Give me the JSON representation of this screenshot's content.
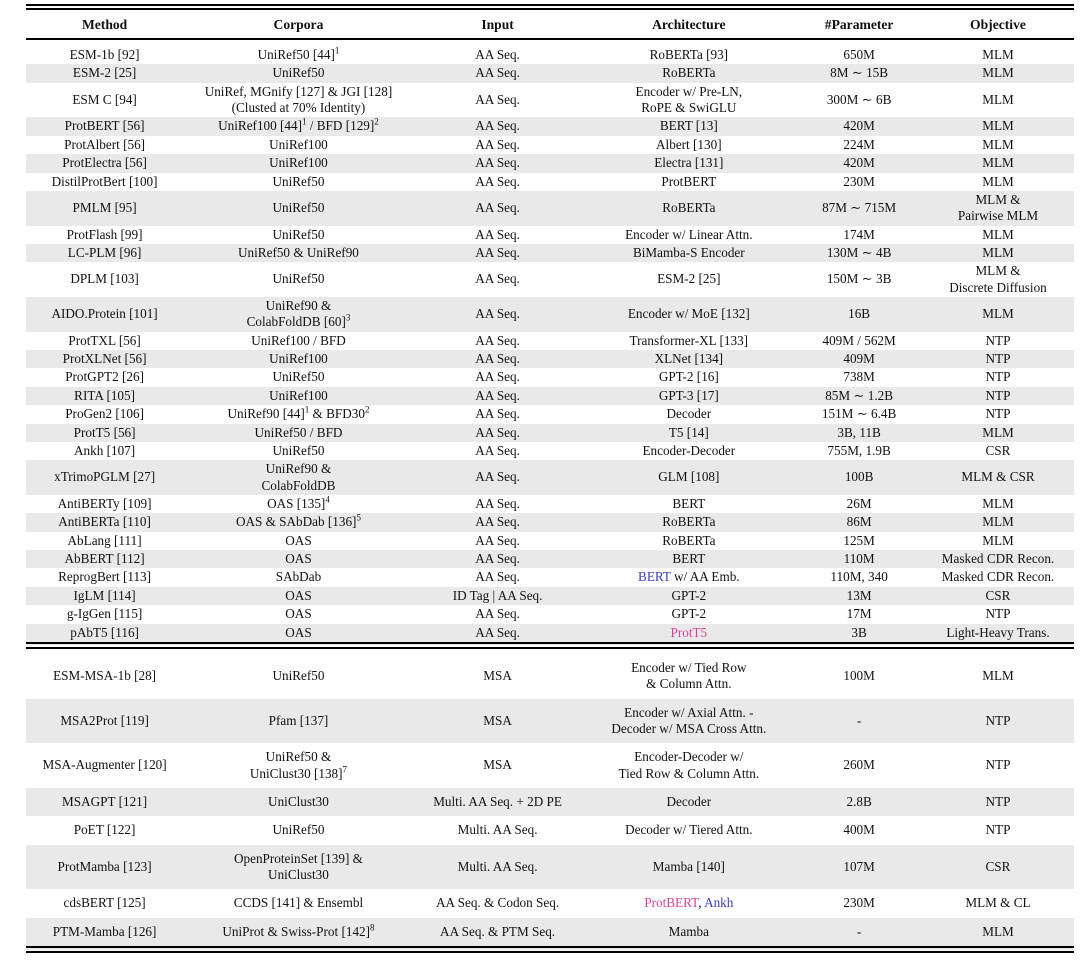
{
  "table": {
    "colors": {
      "pink": "#d6459c",
      "blue": "#3c3eb5",
      "stripe": "#e9e9e9"
    },
    "columns": [
      "Method",
      "Corpora",
      "Input",
      "Architecture",
      "#Parameter",
      "Objective"
    ],
    "sections": [
      {
        "rows": [
          [
            "ESM-1b [92]",
            [
              {
                "t": "UniRef50 [44]"
              },
              {
                "t": "1",
                "sup": true
              }
            ],
            "AA Seq.",
            "RoBERTa [93]",
            "650M",
            "MLM"
          ],
          [
            "ESM-2 [25]",
            "UniRef50",
            "AA Seq.",
            "RoBERTa",
            "8M ∼ 15B",
            "MLM"
          ],
          [
            "ESM C [94]",
            "UniRef, MGnify [127] & JGI [128]\n(Clusted at 70% Identity)",
            "AA Seq.",
            "Encoder w/ Pre-LN,\nRoPE & SwiGLU",
            "300M ∼ 6B",
            "MLM"
          ],
          [
            "ProtBERT [56]",
            [
              {
                "t": "UniRef100 [44]"
              },
              {
                "t": "1",
                "sup": true
              },
              {
                "t": " / BFD [129]"
              },
              {
                "t": "2",
                "sup": true
              }
            ],
            "AA Seq.",
            "BERT [13]",
            "420M",
            "MLM"
          ],
          [
            "ProtAlbert [56]",
            "UniRef100",
            "AA Seq.",
            "Albert [130]",
            "224M",
            "MLM"
          ],
          [
            "ProtElectra [56]",
            "UniRef100",
            "AA Seq.",
            "Electra [131]",
            "420M",
            "MLM"
          ],
          [
            "DistilProtBert [100]",
            "UniRef50",
            "AA Seq.",
            "ProtBERT",
            "230M",
            "MLM"
          ],
          [
            "PMLM [95]",
            "UniRef50",
            "AA Seq.",
            "RoBERTa",
            "87M ∼ 715M",
            "MLM &\nPairwise MLM"
          ],
          [
            "ProtFlash [99]",
            "UniRef50",
            "AA Seq.",
            "Encoder w/ Linear Attn.",
            "174M",
            "MLM"
          ],
          [
            "LC-PLM [96]",
            "UniRef50 & UniRef90",
            "AA Seq.",
            "BiMamba-S Encoder",
            "130M ∼ 4B",
            "MLM"
          ],
          [
            "DPLM [103]",
            "UniRef50",
            "AA Seq.",
            "ESM-2 [25]",
            "150M ∼ 3B",
            "MLM &\nDiscrete Diffusion"
          ],
          [
            "AIDO.Protein [101]",
            [
              {
                "t": "UniRef90 &\nColabFoldDB [60]"
              },
              {
                "t": "3",
                "sup": true
              }
            ],
            "AA Seq.",
            "Encoder w/ MoE [132]",
            "16B",
            "MLM"
          ],
          [
            "ProtTXL [56]",
            "UniRef100 / BFD",
            "AA Seq.",
            "Transformer-XL [133]",
            "409M / 562M",
            "NTP"
          ],
          [
            "ProtXLNet [56]",
            "UniRef100",
            "AA Seq.",
            "XLNet [134]",
            "409M",
            "NTP"
          ],
          [
            "ProtGPT2 [26]",
            "UniRef50",
            "AA Seq.",
            "GPT-2 [16]",
            "738M",
            "NTP"
          ],
          [
            "RITA [105]",
            "UniRef100",
            "AA Seq.",
            "GPT-3 [17]",
            "85M ∼ 1.2B",
            "NTP"
          ],
          [
            "ProGen2 [106]",
            [
              {
                "t": "UniRef90 [44]"
              },
              {
                "t": "1",
                "sup": true
              },
              {
                "t": " & BFD30"
              },
              {
                "t": "2",
                "sup": true
              }
            ],
            "AA Seq.",
            "Decoder",
            "151M ∼ 6.4B",
            "NTP"
          ],
          [
            "ProtT5 [56]",
            "UniRef50 / BFD",
            "AA Seq.",
            "T5 [14]",
            "3B, 11B",
            "MLM"
          ],
          [
            "Ankh [107]",
            "UniRef50",
            "AA Seq.",
            "Encoder-Decoder",
            "755M, 1.9B",
            "CSR"
          ],
          [
            "xTrimoPGLM [27]",
            "UniRef90 &\nColabFoldDB",
            "AA Seq.",
            "GLM [108]",
            "100B",
            "MLM & CSR"
          ],
          [
            "AntiBERTy [109]",
            [
              {
                "t": "OAS [135]"
              },
              {
                "t": "4",
                "sup": true
              }
            ],
            "AA Seq.",
            "BERT",
            "26M",
            "MLM"
          ],
          [
            "AntiBERTa [110]",
            [
              {
                "t": "OAS & SAbDab [136]"
              },
              {
                "t": "5",
                "sup": true
              }
            ],
            "AA Seq.",
            "RoBERTa",
            "86M",
            "MLM"
          ],
          [
            "AbLang [111]",
            "OAS",
            "AA Seq.",
            "RoBERTa",
            "125M",
            "MLM"
          ],
          [
            "AbBERT [112]",
            "OAS",
            "AA Seq.",
            "BERT",
            "110M",
            "Masked CDR Recon."
          ],
          [
            "ReprogBert [113]",
            "SAbDab",
            "AA Seq.",
            [
              {
                "t": "BERT",
                "c": "blue"
              },
              {
                "t": " w/ AA Emb."
              }
            ],
            "110M, 340",
            "Masked CDR Recon."
          ],
          [
            "IgLM [114]",
            "OAS",
            "ID Tag | AA Seq.",
            "GPT-2",
            "13M",
            "CSR"
          ],
          [
            "g-IgGen [115]",
            "OAS",
            "AA Seq.",
            "GPT-2",
            "17M",
            "NTP"
          ],
          [
            "pAbT5 [116]",
            "OAS",
            "AA Seq.",
            [
              {
                "t": "ProtT5",
                "c": "pink"
              }
            ],
            "3B",
            "Light-Heavy Trans."
          ]
        ]
      },
      {
        "rows": [
          [
            "ESM-MSA-1b [28]",
            "UniRef50",
            "MSA",
            "Encoder w/ Tied Row\n& Column Attn.",
            "100M",
            "MLM"
          ],
          [
            "MSA2Prot [119]",
            "Pfam [137]",
            "MSA",
            "Encoder w/ Axial Attn. -\nDecoder w/ MSA Cross Attn.",
            "-",
            "NTP"
          ],
          [
            "MSA-Augmenter [120]",
            [
              {
                "t": "UniRef50 &\nUniClust30 [138]"
              },
              {
                "t": "7",
                "sup": true
              }
            ],
            "MSA",
            "Encoder-Decoder w/\nTied Row & Column Attn.",
            "260M",
            "NTP"
          ],
          [
            "MSAGPT [121]",
            "UniClust30",
            "Multi. AA Seq. + 2D PE",
            "Decoder",
            "2.8B",
            "NTP"
          ],
          [
            "PoET [122]",
            "UniRef50",
            "Multi. AA Seq.",
            "Decoder w/ Tiered Attn.",
            "400M",
            "NTP"
          ],
          [
            "ProtMamba [123]",
            "OpenProteinSet [139] &\nUniClust30",
            "Multi. AA Seq.",
            "Mamba [140]",
            "107M",
            "CSR"
          ],
          [
            "cdsBERT [125]",
            "CCDS [141] & Ensembl",
            "AA Seq. & Codon Seq.",
            [
              {
                "t": "ProtBERT",
                "c": "pink"
              },
              {
                "t": ", "
              },
              {
                "t": "Ankh",
                "c": "blue"
              }
            ],
            "230M",
            "MLM & CL"
          ],
          [
            "PTM-Mamba [126]",
            [
              {
                "t": "UniProt & Swiss-Prot [142]"
              },
              {
                "t": "8",
                "sup": true
              }
            ],
            "AA Seq. & PTM Seq.",
            "Mamba",
            "-",
            "MLM"
          ]
        ]
      }
    ]
  }
}
